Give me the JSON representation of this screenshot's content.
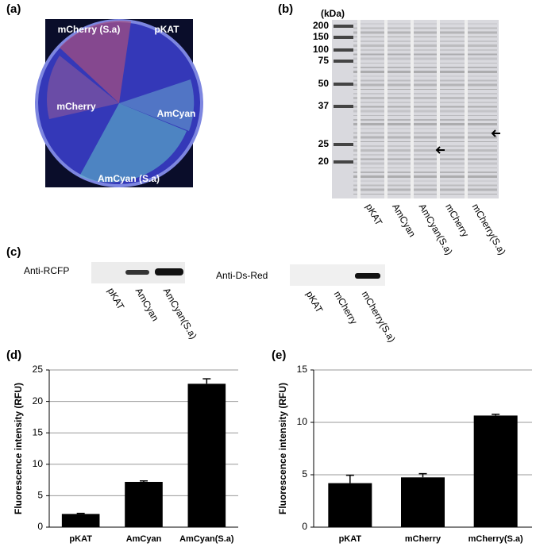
{
  "panels": {
    "a": {
      "label": "(a)",
      "sectors": [
        "mCherry (S.a)",
        "pKAT",
        "mCherry",
        "AmCyan",
        "AmCyan (S.a)"
      ]
    },
    "b": {
      "label": "(b)",
      "unit": "(kDa)",
      "markers": [
        200,
        150,
        100,
        75,
        50,
        37,
        25,
        20
      ],
      "lanes": [
        "pKAT",
        "AmCyan",
        "AmCyan(S.a)",
        "mCherry",
        "mCherry(S.a)"
      ]
    },
    "c": {
      "label": "(c)",
      "blots": [
        {
          "antibody": "Anti-RCFP",
          "lanes": [
            "pKAT",
            "AmCyan",
            "AmCyan(S.a)"
          ]
        },
        {
          "antibody": "Anti-Ds-Red",
          "lanes": [
            "pKAT",
            "mCherry",
            "mCherry(S.a)"
          ]
        }
      ]
    }
  },
  "chart_data": [
    {
      "type": "bar",
      "label": "(d)",
      "y_label": "Fluorescence intensity (RFU)",
      "categories": [
        "pKAT",
        "AmCyan",
        "AmCyan(S.a)"
      ],
      "values": [
        2.1,
        7.2,
        22.8
      ],
      "errors": [
        0.1,
        0.15,
        0.8
      ],
      "color": "#000000",
      "ylim": [
        0,
        25
      ],
      "yticks": [
        0,
        5,
        10,
        15,
        20,
        25
      ],
      "grid": true
    },
    {
      "type": "bar",
      "label": "(e)",
      "y_label": "Fluorescence intensity (RFU)",
      "categories": [
        "pKAT",
        "mCherry",
        "mCherry(S.a)"
      ],
      "values": [
        4.2,
        4.75,
        10.65
      ],
      "errors": [
        0.75,
        0.35,
        0.12
      ],
      "color": "#000000",
      "ylim": [
        0,
        15
      ],
      "yticks": [
        0,
        5,
        10,
        15
      ],
      "grid": true
    }
  ]
}
